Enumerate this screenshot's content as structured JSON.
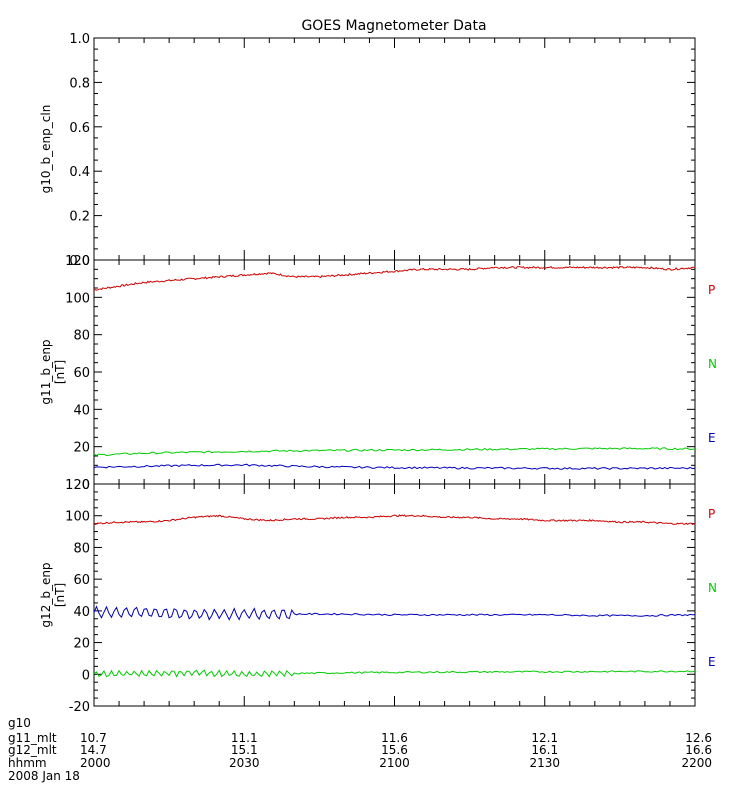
{
  "title": "GOES Magnetometer Data",
  "colors": {
    "P": "#cc0000",
    "N": "#00cc00",
    "E": "#0000bb",
    "axis": "#000000"
  },
  "chart_data": [
    {
      "type": "line",
      "ylabel": "g10_b_enp_cln",
      "unit": "",
      "ylim": [
        0,
        1
      ],
      "yticks": [
        0,
        0.2,
        0.4,
        0.6,
        0.8,
        1.0
      ],
      "ytick_labels": [
        "0.0",
        "0.2",
        "0.4",
        "0.6",
        "0.8",
        "1.0"
      ],
      "series": []
    },
    {
      "type": "line",
      "ylabel": "g11_b_enp",
      "unit": "[nT]",
      "ylim": [
        0,
        120
      ],
      "yticks": [
        0,
        20,
        40,
        60,
        80,
        100,
        120
      ],
      "ytick_labels": [
        "0",
        "20",
        "40",
        "60",
        "80",
        "100",
        "120"
      ],
      "series": [
        {
          "name": "P",
          "color": "#cc0000",
          "x": [
            0,
            5,
            10,
            15,
            20,
            25,
            30,
            35,
            40,
            45,
            50,
            55,
            60,
            65,
            70,
            75,
            80,
            85,
            90,
            95,
            100,
            105,
            110,
            115,
            120
          ],
          "values": [
            104,
            106,
            108,
            109,
            110,
            111,
            112,
            113,
            111,
            111,
            112,
            113,
            114,
            115,
            115,
            115,
            116,
            116,
            116,
            116,
            116,
            116,
            116,
            115,
            116
          ]
        },
        {
          "name": "N",
          "color": "#00cc00",
          "x": [
            0,
            10,
            20,
            30,
            40,
            50,
            60,
            70,
            80,
            90,
            100,
            110,
            120
          ],
          "values": [
            15.5,
            16.5,
            17,
            17.5,
            17.8,
            18,
            18.2,
            18.4,
            18.6,
            18.8,
            19,
            19,
            18.8
          ]
        },
        {
          "name": "E",
          "color": "#0000bb",
          "x": [
            0,
            10,
            20,
            30,
            40,
            50,
            60,
            70,
            80,
            90,
            100,
            110,
            120
          ],
          "values": [
            9,
            9.5,
            10,
            10.2,
            9.5,
            9,
            8.8,
            8.6,
            8.5,
            8.4,
            8.3,
            8.4,
            8.5
          ]
        }
      ]
    },
    {
      "type": "line",
      "ylabel": "g12_b_enp",
      "unit": "[nT]",
      "ylim": [
        -20,
        120
      ],
      "yticks": [
        -20,
        0,
        20,
        40,
        60,
        80,
        100,
        120
      ],
      "ytick_labels": [
        "-20",
        "0",
        "20",
        "40",
        "60",
        "80",
        "100",
        "120"
      ],
      "series": [
        {
          "name": "P",
          "color": "#cc0000",
          "x": [
            0,
            5,
            10,
            15,
            20,
            25,
            30,
            35,
            40,
            45,
            50,
            55,
            60,
            65,
            70,
            75,
            80,
            85,
            90,
            95,
            100,
            105,
            110,
            115,
            120
          ],
          "values": [
            95,
            96,
            96,
            97,
            99,
            100,
            98,
            97,
            98,
            98,
            99,
            99,
            100,
            100,
            99,
            99,
            98,
            98,
            97,
            97,
            97,
            96,
            96,
            95,
            95
          ]
        },
        {
          "name": "N",
          "color": "#00cc00",
          "x": [
            0,
            10,
            20,
            30,
            40,
            50,
            60,
            70,
            80,
            90,
            100,
            110,
            120
          ],
          "values": [
            0,
            0.5,
            1,
            0,
            0.5,
            1,
            1.2,
            1.4,
            1.5,
            1.6,
            1.7,
            1.8,
            2
          ]
        },
        {
          "name": "E",
          "color": "#0000bb",
          "x": [
            0,
            10,
            20,
            30,
            40,
            50,
            60,
            70,
            80,
            90,
            100,
            110,
            120
          ],
          "values": [
            39,
            39,
            38,
            38,
            38,
            38,
            37.5,
            37.5,
            37.5,
            37.5,
            37,
            37,
            37.5
          ]
        }
      ]
    }
  ],
  "xaxis": {
    "xlim": [
      0,
      120
    ],
    "major_ticks": [
      0,
      30,
      60,
      90,
      120
    ],
    "rows": [
      {
        "label": "g10",
        "values": [
          "",
          "",
          "",
          "",
          ""
        ]
      },
      {
        "label": "g11_mlt",
        "values": [
          "10.7",
          "11.1",
          "11.6",
          "12.1",
          "12.6"
        ]
      },
      {
        "label": "g12_mlt",
        "values": [
          "14.7",
          "15.1",
          "15.6",
          "16.1",
          "16.6"
        ]
      },
      {
        "label": "hhmm",
        "values": [
          "2000",
          "2030",
          "2100",
          "2130",
          "2200"
        ]
      }
    ],
    "date": "2008 Jan 18"
  },
  "legend_labels": [
    "P",
    "N",
    "E"
  ]
}
